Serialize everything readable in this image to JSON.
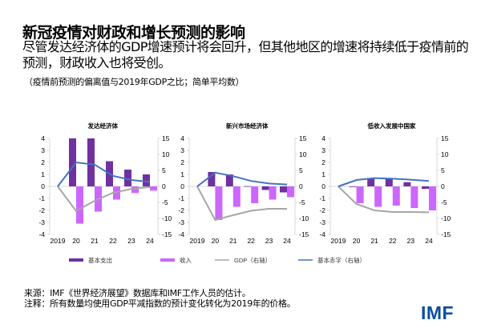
{
  "header": {
    "title": "新冠疫情对财政和增长预测的影响",
    "subtitle": "尽管发达经济体的GDP增速预计将会回升，但其他地区的增速将持续低于疫情前的预测，财政收入也将受创。",
    "note": "（疫情前预测的偏离值与2019年GDP之比；简单平均数）"
  },
  "footer": {
    "source": "来源：IMF《世界经济展望》数据库和IMF工作人员的估计。",
    "notes": "注释：所有数量均使用GDP平减指数的预计变化转化为2019年的价格。",
    "logo": "IMF"
  },
  "colors": {
    "expenditure": "#7030a0",
    "revenue": "#cc66ff",
    "gdp": "#a6a6a6",
    "deficit": "#4472c4",
    "logo": "#0b4ea2"
  },
  "legend": [
    {
      "label": "基本支出",
      "type": "bar",
      "color": "#7030a0"
    },
    {
      "label": "收入",
      "type": "bar",
      "color": "#cc66ff"
    },
    {
      "label": "GDP（右轴）",
      "type": "line",
      "color": "#a6a6a6"
    },
    {
      "label": "基本赤字（右轴）",
      "type": "line",
      "color": "#4472c4"
    }
  ],
  "chart_data": [
    {
      "type": "bar+line",
      "title": "发达经济体",
      "categories": [
        "2019",
        "20",
        "21",
        "22",
        "23",
        "24"
      ],
      "left_ylim": [
        -4,
        4
      ],
      "left_ticks": [
        "4",
        "3",
        "2",
        "1",
        "0",
        "-1",
        "-2",
        "-3",
        "-4"
      ],
      "right_ylim": [
        -15,
        15
      ],
      "right_ticks": [
        "15",
        "10",
        "5",
        "0",
        "-5",
        "-10",
        "-15"
      ],
      "series": [
        {
          "name": "基本支出",
          "axis": "left",
          "kind": "bar",
          "values": [
            null,
            4.0,
            4.0,
            2.1,
            1.4,
            1.0
          ]
        },
        {
          "name": "收入",
          "axis": "left",
          "kind": "bar",
          "values": [
            null,
            -3.1,
            -2.1,
            -1.1,
            -0.55,
            -0.35
          ]
        },
        {
          "name": "GDP（右轴）",
          "axis": "right",
          "kind": "line",
          "values": [
            0,
            -7.7,
            -4.5,
            -2.0,
            -0.8,
            -0.2
          ]
        },
        {
          "name": "基本赤字（右轴）",
          "axis": "right",
          "kind": "line",
          "values": [
            0,
            7.5,
            6.8,
            3.3,
            2.0,
            1.4
          ]
        }
      ]
    },
    {
      "type": "bar+line",
      "title": "新兴市场经济体",
      "categories": [
        "2019",
        "20",
        "21",
        "22",
        "23",
        "24"
      ],
      "left_ylim": [
        -4,
        4
      ],
      "left_ticks": [
        "4",
        "3",
        "2",
        "1",
        "0",
        "-1",
        "-2",
        "-3",
        "-4"
      ],
      "right_ylim": [
        -15,
        15
      ],
      "right_ticks": [
        "15",
        "10",
        "5",
        "0",
        "-5",
        "-10",
        "-15"
      ],
      "series": [
        {
          "name": "基本支出",
          "axis": "left",
          "kind": "bar",
          "values": [
            null,
            1.2,
            1.0,
            0.02,
            -0.3,
            -0.5
          ]
        },
        {
          "name": "收入",
          "axis": "left",
          "kind": "bar",
          "values": [
            null,
            -2.8,
            -1.7,
            -1.4,
            -1.1,
            -0.9
          ]
        },
        {
          "name": "GDP（右轴）",
          "axis": "right",
          "kind": "line",
          "values": [
            0,
            -10.5,
            -9.0,
            -7.6,
            -7.0,
            -7.0
          ]
        },
        {
          "name": "基本赤字（右轴）",
          "axis": "right",
          "kind": "line",
          "values": [
            0,
            4.3,
            3.2,
            1.7,
            0.9,
            0.6
          ]
        }
      ]
    },
    {
      "type": "bar+line",
      "title": "低收入发展中国家",
      "categories": [
        "2019",
        "20",
        "21",
        "22",
        "23",
        "24"
      ],
      "left_ylim": [
        -4,
        4
      ],
      "left_ticks": [
        "4",
        "3",
        "2",
        "1",
        "0",
        "-1",
        "-2",
        "-3",
        "-4"
      ],
      "right_ylim": [
        -15,
        15
      ],
      "right_ticks": [
        "15",
        "10",
        "5",
        "0",
        "-5",
        "-10",
        "-15"
      ],
      "series": [
        {
          "name": "基本支出",
          "axis": "left",
          "kind": "bar",
          "values": [
            null,
            -0.05,
            0.7,
            0.7,
            0.35,
            -0.2
          ]
        },
        {
          "name": "收入",
          "axis": "left",
          "kind": "bar",
          "values": [
            null,
            -1.4,
            -1.7,
            -1.6,
            -1.8,
            -2.0
          ]
        },
        {
          "name": "GDP（右轴）",
          "axis": "right",
          "kind": "line",
          "values": [
            0,
            -5.5,
            -7.5,
            -8.0,
            -8.0,
            -8.1
          ]
        },
        {
          "name": "基本赤字（右轴）",
          "axis": "right",
          "kind": "line",
          "values": [
            0,
            2.0,
            2.6,
            2.4,
            2.1,
            1.7
          ]
        }
      ]
    }
  ]
}
